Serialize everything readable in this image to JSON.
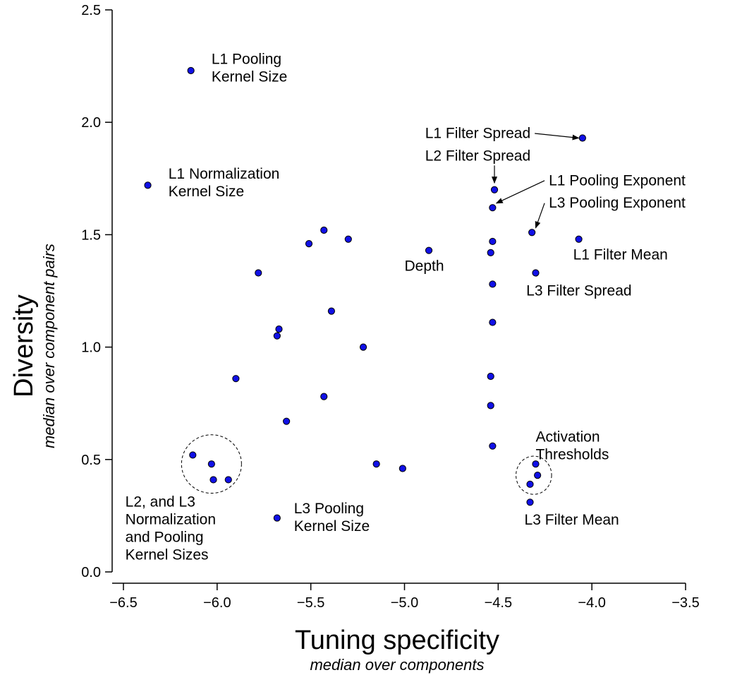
{
  "chart_data": {
    "type": "scatter",
    "title": "",
    "xlabel": "Tuning specificity",
    "xlabel_sub": "median over components",
    "ylabel": "Diversity",
    "ylabel_sub": "median over component pairs",
    "xlim": [
      -6.5,
      -3.5
    ],
    "ylim": [
      0.0,
      2.5
    ],
    "xticks": [
      "−6.5",
      "−6.0",
      "−5.5",
      "−5.0",
      "−4.5",
      "−4.0",
      "−3.5"
    ],
    "yticks": [
      "0.0",
      "0.5",
      "1.0",
      "1.5",
      "2.0",
      "2.5"
    ],
    "grid": false,
    "legend": "none",
    "colors": {
      "marker": "#1010e6",
      "marker_edge": "#000000"
    },
    "points": [
      {
        "x": -6.14,
        "y": 2.23
      },
      {
        "x": -6.37,
        "y": 1.72
      },
      {
        "x": -5.43,
        "y": 1.52
      },
      {
        "x": -5.51,
        "y": 1.46
      },
      {
        "x": -5.3,
        "y": 1.48
      },
      {
        "x": -5.78,
        "y": 1.33
      },
      {
        "x": -5.39,
        "y": 1.16
      },
      {
        "x": -5.67,
        "y": 1.08
      },
      {
        "x": -5.68,
        "y": 1.05
      },
      {
        "x": -5.22,
        "y": 1.0
      },
      {
        "x": -5.9,
        "y": 0.86
      },
      {
        "x": -5.43,
        "y": 0.78
      },
      {
        "x": -5.63,
        "y": 0.67
      },
      {
        "x": -6.13,
        "y": 0.52
      },
      {
        "x": -6.03,
        "y": 0.48
      },
      {
        "x": -6.02,
        "y": 0.41
      },
      {
        "x": -5.94,
        "y": 0.41
      },
      {
        "x": -5.68,
        "y": 0.24
      },
      {
        "x": -5.15,
        "y": 0.48
      },
      {
        "x": -5.01,
        "y": 0.46
      },
      {
        "x": -4.87,
        "y": 1.43
      },
      {
        "x": -4.52,
        "y": 1.7
      },
      {
        "x": -4.53,
        "y": 1.62
      },
      {
        "x": -4.53,
        "y": 1.47
      },
      {
        "x": -4.54,
        "y": 1.42
      },
      {
        "x": -4.53,
        "y": 1.28
      },
      {
        "x": -4.53,
        "y": 1.11
      },
      {
        "x": -4.54,
        "y": 0.87
      },
      {
        "x": -4.54,
        "y": 0.74
      },
      {
        "x": -4.53,
        "y": 0.56
      },
      {
        "x": -4.05,
        "y": 1.93
      },
      {
        "x": -4.32,
        "y": 1.51
      },
      {
        "x": -4.07,
        "y": 1.48
      },
      {
        "x": -4.3,
        "y": 1.33
      },
      {
        "x": -4.3,
        "y": 0.48
      },
      {
        "x": -4.29,
        "y": 0.43
      },
      {
        "x": -4.33,
        "y": 0.39
      },
      {
        "x": -4.33,
        "y": 0.31
      }
    ],
    "annotations": [
      {
        "lines": [
          "L1 Pooling",
          "Kernel Size"
        ],
        "x": -6.03,
        "y": 2.26
      },
      {
        "lines": [
          "L1 Normalization",
          "Kernel Size"
        ],
        "x": -6.26,
        "y": 1.75
      },
      {
        "lines": [
          "L1 Filter Spread"
        ],
        "x": -4.89,
        "y": 1.93,
        "arrow_to": {
          "x": -4.07,
          "y": 1.93
        }
      },
      {
        "lines": [
          "L2 Filter Spread"
        ],
        "x": -4.89,
        "y": 1.83,
        "arrow_to": {
          "x": -4.52,
          "y": 1.73
        }
      },
      {
        "lines": [
          "L1 Pooling Exponent"
        ],
        "x": -4.23,
        "y": 1.72,
        "arrow_to": {
          "x": -4.51,
          "y": 1.64
        }
      },
      {
        "lines": [
          "L3 Pooling Exponent"
        ],
        "x": -4.23,
        "y": 1.62,
        "arrow_to": {
          "x": -4.3,
          "y": 1.53
        }
      },
      {
        "lines": [
          "L1 Filter Mean"
        ],
        "x": -4.1,
        "y": 1.39
      },
      {
        "lines": [
          "Depth"
        ],
        "x": -5.0,
        "y": 1.34
      },
      {
        "lines": [
          "L3 Filter Spread"
        ],
        "x": -4.35,
        "y": 1.23
      },
      {
        "lines": [
          "Activation",
          "Thresholds"
        ],
        "x": -4.3,
        "y": 0.58
      },
      {
        "lines": [
          "L3 Filter Mean"
        ],
        "x": -4.36,
        "y": 0.21
      },
      {
        "lines": [
          "L3 Pooling",
          "Kernel Size"
        ],
        "x": -5.59,
        "y": 0.26
      },
      {
        "lines": [
          "L2, and L3",
          "Normalization",
          "and Pooling",
          "Kernel Sizes"
        ],
        "x": -6.49,
        "y": 0.29
      }
    ],
    "circles": [
      {
        "cx": -6.03,
        "cy": 0.48,
        "rx": 0.16,
        "ry": 0.13
      },
      {
        "cx": -4.31,
        "cy": 0.43,
        "rx": 0.095,
        "ry": 0.085
      }
    ]
  }
}
